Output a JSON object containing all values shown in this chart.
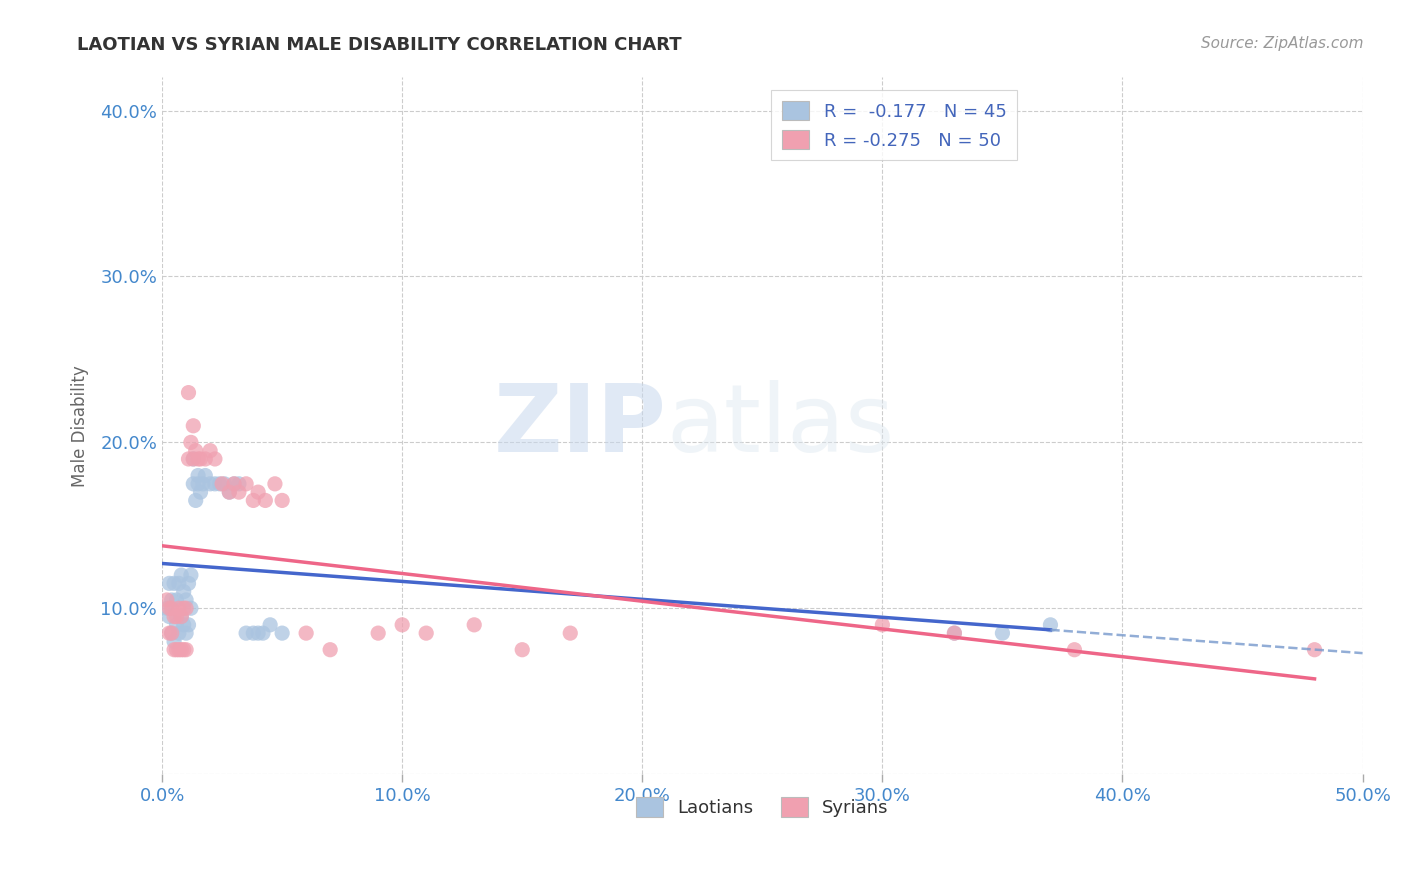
{
  "title": "LAOTIAN VS SYRIAN MALE DISABILITY CORRELATION CHART",
  "source": "Source: ZipAtlas.com",
  "ylabel": "Male Disability",
  "xlim": [
    0.0,
    0.5
  ],
  "ylim": [
    0.0,
    0.42
  ],
  "xticks": [
    0.0,
    0.1,
    0.2,
    0.3,
    0.4,
    0.5
  ],
  "yticks": [
    0.0,
    0.1,
    0.2,
    0.3,
    0.4
  ],
  "ytick_labels": [
    "",
    "10.0%",
    "20.0%",
    "30.0%",
    "40.0%"
  ],
  "xtick_labels": [
    "0.0%",
    "10.0%",
    "20.0%",
    "30.0%",
    "40.0%",
    "50.0%"
  ],
  "grid_color": "#cccccc",
  "background_color": "#ffffff",
  "laotian_color": "#aac4e0",
  "syrian_color": "#f0a0b0",
  "laotian_line_color": "#4466cc",
  "syrian_line_color": "#ee6688",
  "laotian_line_dash_color": "#7799cc",
  "laotian_R": -0.177,
  "laotian_N": 45,
  "syrian_R": -0.275,
  "syrian_N": 50,
  "watermark_zip": "ZIP",
  "watermark_atlas": "atlas",
  "legend_label_laotians": "Laotians",
  "legend_label_syrians": "Syrians",
  "laotian_x": [
    0.002,
    0.003,
    0.003,
    0.004,
    0.004,
    0.005,
    0.005,
    0.006,
    0.006,
    0.007,
    0.007,
    0.008,
    0.008,
    0.009,
    0.009,
    0.01,
    0.01,
    0.011,
    0.011,
    0.012,
    0.012,
    0.013,
    0.013,
    0.014,
    0.015,
    0.015,
    0.016,
    0.017,
    0.018,
    0.02,
    0.022,
    0.024,
    0.026,
    0.028,
    0.03,
    0.032,
    0.035,
    0.038,
    0.04,
    0.042,
    0.045,
    0.05,
    0.33,
    0.35,
    0.37
  ],
  "laotian_y": [
    0.1,
    0.115,
    0.095,
    0.105,
    0.085,
    0.115,
    0.08,
    0.105,
    0.09,
    0.115,
    0.085,
    0.12,
    0.095,
    0.11,
    0.09,
    0.105,
    0.085,
    0.115,
    0.09,
    0.12,
    0.1,
    0.19,
    0.175,
    0.165,
    0.18,
    0.175,
    0.17,
    0.175,
    0.18,
    0.175,
    0.175,
    0.175,
    0.175,
    0.17,
    0.175,
    0.175,
    0.085,
    0.085,
    0.085,
    0.085,
    0.09,
    0.085,
    0.085,
    0.085,
    0.09
  ],
  "syrian_x": [
    0.002,
    0.003,
    0.003,
    0.004,
    0.004,
    0.005,
    0.005,
    0.006,
    0.006,
    0.007,
    0.007,
    0.008,
    0.008,
    0.009,
    0.009,
    0.01,
    0.01,
    0.011,
    0.011,
    0.012,
    0.013,
    0.013,
    0.014,
    0.015,
    0.016,
    0.018,
    0.02,
    0.022,
    0.025,
    0.028,
    0.03,
    0.032,
    0.035,
    0.038,
    0.04,
    0.043,
    0.047,
    0.05,
    0.06,
    0.07,
    0.09,
    0.1,
    0.11,
    0.13,
    0.15,
    0.17,
    0.3,
    0.33,
    0.38,
    0.48
  ],
  "syrian_y": [
    0.105,
    0.1,
    0.085,
    0.1,
    0.085,
    0.095,
    0.075,
    0.095,
    0.075,
    0.1,
    0.075,
    0.095,
    0.075,
    0.1,
    0.075,
    0.1,
    0.075,
    0.23,
    0.19,
    0.2,
    0.21,
    0.19,
    0.195,
    0.19,
    0.19,
    0.19,
    0.195,
    0.19,
    0.175,
    0.17,
    0.175,
    0.17,
    0.175,
    0.165,
    0.17,
    0.165,
    0.175,
    0.165,
    0.085,
    0.075,
    0.085,
    0.09,
    0.085,
    0.09,
    0.075,
    0.085,
    0.09,
    0.085,
    0.075,
    0.075
  ]
}
